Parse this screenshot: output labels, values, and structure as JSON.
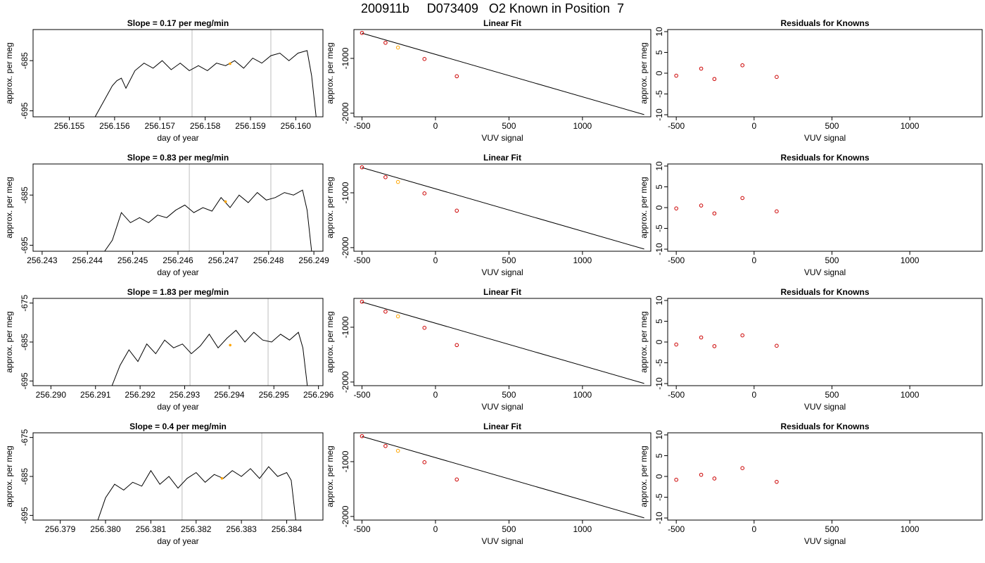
{
  "figure": {
    "title": "200911b     D073409   O2 Known in Position  7"
  },
  "chart_data": [
    {
      "type": "line",
      "row": 0,
      "panel": "timeseries",
      "title": "Slope =  0.17  per meg/min",
      "xlabel": "day of year",
      "ylabel": "approx. per meg",
      "xlim": [
        256.1542,
        256.1606
      ],
      "ylim": [
        -696.2,
        -678.8
      ],
      "xticks": [
        256.155,
        256.156,
        256.157,
        256.158,
        256.159,
        256.16
      ],
      "xtick_labels": [
        "256.155",
        "256.156",
        "256.157",
        "256.158",
        "256.159",
        "256.160"
      ],
      "yticks": [
        -685,
        -695
      ],
      "ytick_labels": [
        "-685",
        "-695"
      ],
      "vlines": [
        256.15771,
        256.15945
      ],
      "series": [
        {
          "x": [
            256.15557,
            256.15595,
            256.15605,
            256.15615,
            256.15625,
            256.15645,
            256.15665,
            256.15685,
            256.15705,
            256.15725,
            256.15745,
            256.15765,
            256.15785,
            256.15805,
            256.15825,
            256.15845,
            256.15865,
            256.15885,
            256.15905,
            256.15925,
            256.15945,
            256.15965,
            256.15985,
            256.16005,
            256.16025,
            256.16035,
            256.16045
          ],
          "y": [
            -696.2,
            -690,
            -689,
            -688.5,
            -690.5,
            -687,
            -685.5,
            -686.5,
            -685,
            -686.8,
            -685.5,
            -687,
            -686,
            -687,
            -685.5,
            -686,
            -685,
            -686.5,
            -684.5,
            -685.5,
            -684,
            -683.5,
            -685,
            -683.5,
            -683,
            -688,
            -696.2
          ]
        }
      ],
      "marker": {
        "x": 256.15855,
        "y": -685.6,
        "color": "#ffa500"
      }
    },
    {
      "type": "scatter",
      "row": 0,
      "panel": "linear-fit",
      "title": "Linear Fit",
      "xlabel": "VUV signal",
      "ylabel": "approx. per meg",
      "xlim": [
        -555,
        1465
      ],
      "ylim": [
        -2066,
        -474
      ],
      "xticks": [
        -500,
        0,
        500,
        1000
      ],
      "xtick_labels": [
        "-500",
        "0",
        "500",
        "1000"
      ],
      "yticks": [
        -1000,
        -2000
      ],
      "ytick_labels": [
        "-1000",
        "-2000"
      ],
      "points_x": [
        -500,
        -340,
        -255,
        -75,
        145
      ],
      "points_y": [
        -535,
        -715,
        -802,
        -1011,
        -1326
      ],
      "point_colors": [
        "#cc0000",
        "#cc0000",
        "#ffa500",
        "#cc0000",
        "#cc0000"
      ],
      "fit_line": [
        [
          -500,
          -540
        ],
        [
          1420,
          -2026
        ]
      ]
    },
    {
      "type": "scatter",
      "row": 0,
      "panel": "residuals",
      "title": "Residuals for Knowns",
      "xlabel": "VUV signal",
      "ylabel": "approx. per meg",
      "xlim": [
        -555,
        1465
      ],
      "ylim": [
        -10.5,
        10.5
      ],
      "xticks": [
        -500,
        0,
        500,
        1000
      ],
      "xtick_labels": [
        "-500",
        "0",
        "500",
        "1000"
      ],
      "yticks": [
        10,
        5,
        0,
        -5,
        -10
      ],
      "ytick_labels": [
        "10",
        "5",
        "0",
        "-5",
        "-10"
      ],
      "points_x": [
        -500,
        -340,
        -255,
        -75,
        145
      ],
      "points_y": [
        -0.6,
        1.1,
        -1.4,
        1.9,
        -0.9
      ],
      "point_colors": [
        "#cc0000",
        "#cc0000",
        "#cc0000",
        "#cc0000",
        "#cc0000"
      ]
    },
    {
      "type": "line",
      "row": 1,
      "panel": "timeseries",
      "title": "Slope =  0.83  per meg/min",
      "xlabel": "day of year",
      "ylabel": "approx. per meg",
      "xlim": [
        256.2428,
        256.2492
      ],
      "ylim": [
        -696.2,
        -678.8
      ],
      "xticks": [
        256.243,
        256.244,
        256.245,
        256.246,
        256.247,
        256.248,
        256.249
      ],
      "xtick_labels": [
        "256.243",
        "256.244",
        "256.245",
        "256.246",
        "256.247",
        "256.248",
        "256.249"
      ],
      "yticks": [
        -685,
        -695
      ],
      "ytick_labels": [
        "-685",
        "-695"
      ],
      "vlines": [
        256.24625,
        256.24805
      ],
      "series": [
        {
          "x": [
            256.24438,
            256.24455,
            256.24475,
            256.24495,
            256.24515,
            256.24535,
            256.24555,
            256.24575,
            256.24595,
            256.24615,
            256.24635,
            256.24655,
            256.24675,
            256.24695,
            256.24715,
            256.24735,
            256.24755,
            256.24775,
            256.24795,
            256.24815,
            256.24835,
            256.24855,
            256.24875,
            256.24885,
            256.24895
          ],
          "y": [
            -696.2,
            -694,
            -688.5,
            -690.5,
            -689.5,
            -690.5,
            -689,
            -689.5,
            -688,
            -687,
            -688.5,
            -687.5,
            -688.2,
            -685.5,
            -687.5,
            -685,
            -686.5,
            -684.5,
            -686,
            -685.5,
            -684.5,
            -685,
            -684,
            -688,
            -696.2
          ]
        }
      ],
      "marker": {
        "x": 256.24705,
        "y": -686.3,
        "color": "#ffa500"
      }
    },
    {
      "type": "scatter",
      "row": 1,
      "panel": "linear-fit",
      "title": "Linear Fit",
      "xlabel": "VUV signal",
      "ylabel": "approx. per meg",
      "xlim": [
        -555,
        1465
      ],
      "ylim": [
        -2066,
        -474
      ],
      "xticks": [
        -500,
        0,
        500,
        1000
      ],
      "xtick_labels": [
        "-500",
        "0",
        "500",
        "1000"
      ],
      "yticks": [
        -1000,
        -2000
      ],
      "ytick_labels": [
        "-1000",
        "-2000"
      ],
      "points_x": [
        -500,
        -340,
        -255,
        -75,
        145
      ],
      "points_y": [
        -535,
        -715,
        -802,
        -1011,
        -1326
      ],
      "point_colors": [
        "#cc0000",
        "#cc0000",
        "#ffa500",
        "#cc0000",
        "#cc0000"
      ],
      "fit_line": [
        [
          -500,
          -540
        ],
        [
          1420,
          -2026
        ]
      ]
    },
    {
      "type": "scatter",
      "row": 1,
      "panel": "residuals",
      "title": "Residuals for Knowns",
      "xlabel": "VUV signal",
      "ylabel": "approx. per meg",
      "xlim": [
        -555,
        1465
      ],
      "ylim": [
        -10.5,
        10.5
      ],
      "xticks": [
        -500,
        0,
        500,
        1000
      ],
      "xtick_labels": [
        "-500",
        "0",
        "500",
        "1000"
      ],
      "yticks": [
        10,
        5,
        0,
        -5,
        -10
      ],
      "ytick_labels": [
        "10",
        "5",
        "0",
        "-5",
        "-10"
      ],
      "points_x": [
        -500,
        -340,
        -255,
        -75,
        145
      ],
      "points_y": [
        -0.2,
        0.5,
        -1.4,
        2.3,
        -0.9
      ],
      "point_colors": [
        "#cc0000",
        "#cc0000",
        "#cc0000",
        "#cc0000",
        "#cc0000"
      ]
    },
    {
      "type": "line",
      "row": 2,
      "panel": "timeseries",
      "title": "Slope =  1.83  per meg/min",
      "xlabel": "day of year",
      "ylabel": "approx. per meg",
      "xlim": [
        256.2896,
        256.2961
      ],
      "ylim": [
        -696.2,
        -673.8
      ],
      "xticks": [
        256.29,
        256.291,
        256.292,
        256.293,
        256.294,
        256.295,
        256.296
      ],
      "xtick_labels": [
        "256.290",
        "256.291",
        "256.292",
        "256.293",
        "256.294",
        "256.295",
        "256.296"
      ],
      "yticks": [
        -675,
        -685,
        -695
      ],
      "ytick_labels": [
        "-675",
        "-685",
        "-695"
      ],
      "vlines": [
        256.29312,
        256.29487
      ],
      "series": [
        {
          "x": [
            256.29137,
            256.29155,
            256.29175,
            256.29195,
            256.29215,
            256.29235,
            256.29255,
            256.29275,
            256.29295,
            256.29315,
            256.29335,
            256.29355,
            256.29375,
            256.29395,
            256.29415,
            256.29435,
            256.29455,
            256.29475,
            256.29495,
            256.29515,
            256.29535,
            256.29555,
            256.29565,
            256.29575
          ],
          "y": [
            -696.2,
            -691,
            -687,
            -690,
            -685.5,
            -688,
            -684.5,
            -686.5,
            -685.5,
            -688,
            -686,
            -683,
            -686.5,
            -684,
            -682,
            -685,
            -682.5,
            -684.5,
            -685,
            -683,
            -684.5,
            -682.5,
            -686.5,
            -696.2
          ]
        }
      ],
      "marker": {
        "x": 256.29402,
        "y": -685.8,
        "color": "#ffa500"
      }
    },
    {
      "type": "scatter",
      "row": 2,
      "panel": "linear-fit",
      "title": "Linear Fit",
      "xlabel": "VUV signal",
      "ylabel": "approx. per meg",
      "xlim": [
        -555,
        1465
      ],
      "ylim": [
        -2066,
        -474
      ],
      "xticks": [
        -500,
        0,
        500,
        1000
      ],
      "xtick_labels": [
        "-500",
        "0",
        "500",
        "1000"
      ],
      "yticks": [
        -1000,
        -2000
      ],
      "ytick_labels": [
        "-1000",
        "-2000"
      ],
      "points_x": [
        -500,
        -340,
        -255,
        -75,
        145
      ],
      "points_y": [
        -535,
        -715,
        -802,
        -1011,
        -1326
      ],
      "point_colors": [
        "#cc0000",
        "#cc0000",
        "#ffa500",
        "#cc0000",
        "#cc0000"
      ],
      "fit_line": [
        [
          -500,
          -540
        ],
        [
          1420,
          -2026
        ]
      ]
    },
    {
      "type": "scatter",
      "row": 2,
      "panel": "residuals",
      "title": "Residuals for Knowns",
      "xlabel": "VUV signal",
      "ylabel": "approx. per meg",
      "xlim": [
        -555,
        1465
      ],
      "ylim": [
        -10.5,
        10.5
      ],
      "xticks": [
        -500,
        0,
        500,
        1000
      ],
      "xtick_labels": [
        "-500",
        "0",
        "500",
        "1000"
      ],
      "yticks": [
        10,
        5,
        0,
        -5,
        -10
      ],
      "ytick_labels": [
        "10",
        "5",
        "0",
        "-5",
        "-10"
      ],
      "points_x": [
        -500,
        -340,
        -255,
        -75,
        145
      ],
      "points_y": [
        -0.6,
        1.1,
        -1.0,
        1.6,
        -0.9
      ],
      "point_colors": [
        "#cc0000",
        "#cc0000",
        "#cc0000",
        "#cc0000",
        "#cc0000"
      ]
    },
    {
      "type": "line",
      "row": 3,
      "panel": "timeseries",
      "title": "Slope =  0.4  per meg/min",
      "xlabel": "day of year",
      "ylabel": "approx. per meg",
      "xlim": [
        256.3784,
        256.3848
      ],
      "ylim": [
        -696.2,
        -673.8
      ],
      "xticks": [
        256.379,
        256.38,
        256.381,
        256.382,
        256.383,
        256.384
      ],
      "xtick_labels": [
        "256.379",
        "256.380",
        "256.381",
        "256.382",
        "256.383",
        "256.384"
      ],
      "yticks": [
        -675,
        -685,
        -695
      ],
      "ytick_labels": [
        "-675",
        "-685",
        "-695"
      ],
      "vlines": [
        256.38169,
        256.38345
      ],
      "series": [
        {
          "x": [
            256.37983,
            256.38,
            256.3802,
            256.3804,
            256.3806,
            256.3808,
            256.381,
            256.3812,
            256.3814,
            256.3816,
            256.3818,
            256.382,
            256.3822,
            256.3824,
            256.3826,
            256.3828,
            256.383,
            256.3832,
            256.3834,
            256.3836,
            256.3838,
            256.384,
            256.3841,
            256.3842
          ],
          "y": [
            -696.2,
            -690.5,
            -687,
            -688.5,
            -686.5,
            -687.5,
            -683.5,
            -687,
            -685,
            -688,
            -685.5,
            -684,
            -686.5,
            -684.5,
            -685.5,
            -683.5,
            -685,
            -683,
            -685.5,
            -682.5,
            -685,
            -684,
            -686,
            -696.2
          ]
        }
      ],
      "marker": {
        "x": 256.38257,
        "y": -685.5,
        "color": "#ffa500"
      }
    },
    {
      "type": "scatter",
      "row": 3,
      "panel": "linear-fit",
      "title": "Linear Fit",
      "xlabel": "VUV signal",
      "ylabel": "approx. per meg",
      "xlim": [
        -555,
        1465
      ],
      "ylim": [
        -2066,
        -474
      ],
      "xticks": [
        -500,
        0,
        500,
        1000
      ],
      "xtick_labels": [
        "-500",
        "0",
        "500",
        "1000"
      ],
      "yticks": [
        -1000,
        -2000
      ],
      "ytick_labels": [
        "-1000",
        "-2000"
      ],
      "points_x": [
        -500,
        -340,
        -255,
        -75,
        145
      ],
      "points_y": [
        -535,
        -715,
        -802,
        -1011,
        -1326
      ],
      "point_colors": [
        "#cc0000",
        "#cc0000",
        "#ffa500",
        "#cc0000",
        "#cc0000"
      ],
      "fit_line": [
        [
          -500,
          -540
        ],
        [
          1420,
          -2026
        ]
      ]
    },
    {
      "type": "scatter",
      "row": 3,
      "panel": "residuals",
      "title": "Residuals for Knowns",
      "xlabel": "VUV signal",
      "ylabel": "approx. per meg",
      "xlim": [
        -555,
        1465
      ],
      "ylim": [
        -10.5,
        10.5
      ],
      "xticks": [
        -500,
        0,
        500,
        1000
      ],
      "xtick_labels": [
        "-500",
        "0",
        "500",
        "1000"
      ],
      "yticks": [
        10,
        5,
        0,
        -5,
        -10
      ],
      "ytick_labels": [
        "10",
        "5",
        "0",
        "-5",
        "-10"
      ],
      "points_x": [
        -500,
        -340,
        -255,
        -75,
        145
      ],
      "points_y": [
        -0.8,
        0.4,
        -0.5,
        2.0,
        -1.3
      ],
      "point_colors": [
        "#cc0000",
        "#cc0000",
        "#cc0000",
        "#cc0000",
        "#cc0000"
      ]
    }
  ]
}
